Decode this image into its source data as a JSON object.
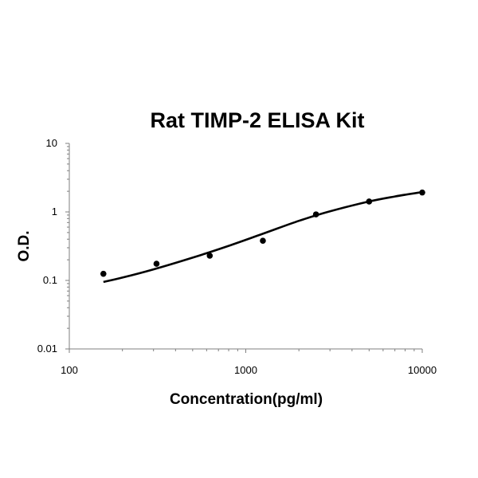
{
  "chart_data": {
    "type": "scatter",
    "title": "Rat TIMP-2 ELISA Kit",
    "xlabel": "Concentration(pg/ml)",
    "ylabel": "O.D.",
    "x_scale": "log",
    "y_scale": "log",
    "xlim": [
      100,
      10000
    ],
    "ylim": [
      0.01,
      10
    ],
    "x_ticks": [
      "100",
      "1000",
      "10000"
    ],
    "y_ticks": [
      "0.01",
      "0.1",
      "1",
      "10"
    ],
    "grid": false,
    "legend": "none",
    "series": [
      {
        "x": [
          156,
          312,
          625,
          1250,
          2500,
          5000,
          10000
        ],
        "y": [
          0.125,
          0.175,
          0.23,
          0.38,
          0.92,
          1.42,
          1.92
        ]
      }
    ],
    "fit_curve": {
      "x": [
        156,
        200,
        300,
        500,
        800,
        1250,
        2000,
        3000,
        5000,
        7000,
        10000
      ],
      "y": [
        0.095,
        0.11,
        0.145,
        0.215,
        0.32,
        0.48,
        0.74,
        1.02,
        1.42,
        1.68,
        1.95
      ]
    },
    "colors": {
      "points": "#000000",
      "curve": "#000000",
      "axis": "#7f7f7f"
    }
  }
}
